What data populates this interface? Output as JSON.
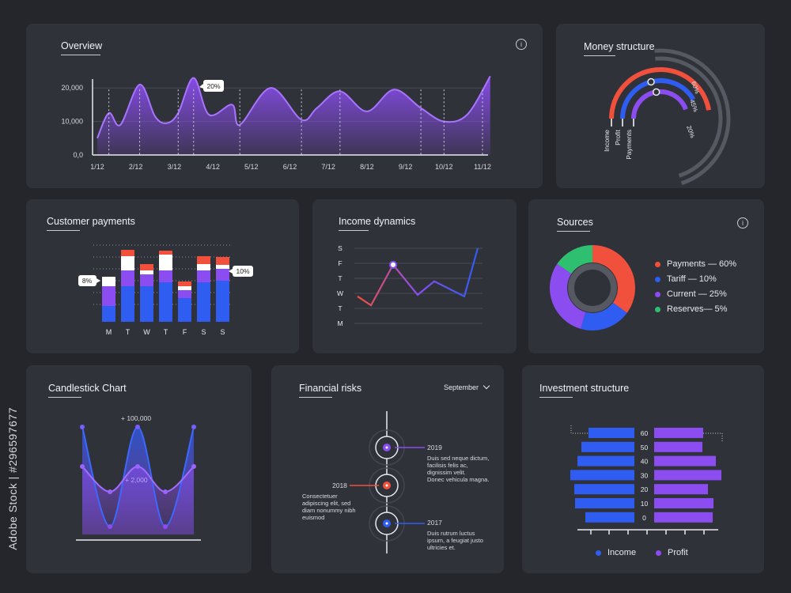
{
  "watermark": {
    "side_text": "Adobe Stock | #296597677"
  },
  "colors": {
    "purple": "#8b4df0",
    "blue": "#2f5df2",
    "red": "#f0503c",
    "white": "#ffffff",
    "green": "#2fbf70",
    "grey": "#565862"
  },
  "icons": {
    "info": "i",
    "chevron": "chevron-down"
  },
  "overview": {
    "title": "Overview",
    "callout": "20%"
  },
  "money": {
    "title": "Money structure"
  },
  "customer": {
    "title": "Customer payments",
    "callout_left": "8%",
    "callout_right": "10%"
  },
  "income": {
    "title": "Income dynamics"
  },
  "sources": {
    "title": "Sources"
  },
  "candle": {
    "title": "Candlestick Chart",
    "label_top": "+ 100,000",
    "label_mid": "+ 2,000"
  },
  "risks": {
    "title": "Financial risks",
    "month": "September",
    "events": [
      {
        "year": "2019",
        "text": [
          "Duis sed neque dictum,",
          "facilisis felis ac,",
          "dignissim velit.",
          "Donec vehicula magna."
        ]
      },
      {
        "year": "2018",
        "text": [
          "Consectetuer",
          "adipiscing elit, sed",
          "diam nonummy nibh",
          "euismod"
        ]
      },
      {
        "year": "2017",
        "text": [
          "Duis rutrum luctus",
          "ipsum, a feugiat justo",
          "ultricies et."
        ]
      }
    ]
  },
  "investment": {
    "title": "Investment structure"
  },
  "chart_data": [
    {
      "type": "area",
      "title": "Overview",
      "x": [
        "1/12",
        "2/12",
        "3/12",
        "4/12",
        "5/12",
        "6/12",
        "7/12",
        "8/12",
        "9/12",
        "10/12",
        "11/12"
      ],
      "yticks": [
        "20,000",
        "10,000",
        "0,0"
      ],
      "ylim": [
        0,
        25000
      ],
      "points": [
        [
          0,
          5000
        ],
        [
          0.3,
          12500
        ],
        [
          0.6,
          9000
        ],
        [
          1.1,
          21000
        ],
        [
          1.5,
          11500
        ],
        [
          1.8,
          9500
        ],
        [
          2.1,
          12500
        ],
        [
          2.5,
          23000
        ],
        [
          2.9,
          12000
        ],
        [
          3.5,
          15000
        ],
        [
          3.7,
          9000
        ],
        [
          4.5,
          20000
        ],
        [
          5.3,
          10500
        ],
        [
          5.7,
          14000
        ],
        [
          6.3,
          19000
        ],
        [
          7.0,
          13000
        ],
        [
          7.7,
          19500
        ],
        [
          8.4,
          14000
        ],
        [
          9.0,
          10000
        ],
        [
          9.6,
          12000
        ],
        [
          10.2,
          23500
        ]
      ],
      "grid": true
    },
    {
      "type": "pie",
      "title": "Money structure",
      "series": [
        {
          "name": "Income",
          "value": 60,
          "label": "60%"
        },
        {
          "name": "Profit",
          "value": 45,
          "label": "45%"
        },
        {
          "name": "Payments",
          "value": 20,
          "label": "20%"
        }
      ]
    },
    {
      "type": "bar",
      "title": "Customer payments",
      "categories": [
        "M",
        "T",
        "W",
        "T",
        "F",
        "S",
        "S"
      ],
      "stacked": true,
      "series": [
        {
          "values": [
            20,
            45,
            45,
            50,
            30,
            50,
            52
          ]
        },
        {
          "values": [
            25,
            20,
            15,
            15,
            10,
            15,
            15
          ]
        },
        {
          "values": [
            12,
            18,
            5,
            20,
            5,
            8,
            5
          ]
        },
        {
          "values": [
            0,
            8,
            8,
            5,
            6,
            10,
            10
          ]
        }
      ],
      "ylim": [
        0,
        100
      ]
    },
    {
      "type": "line",
      "title": "Income dynamics",
      "yticks": [
        "S",
        "F",
        "T",
        "W",
        "T",
        "M"
      ],
      "values": [
        1.8,
        1.2,
        3.9,
        1.9,
        2.8,
        1.8,
        5.0
      ],
      "ylim": [
        0,
        5
      ]
    },
    {
      "type": "pie",
      "title": "Sources",
      "series": [
        {
          "name": "Payments",
          "value": 60,
          "label": "Payments — 60%"
        },
        {
          "name": "Tariff",
          "value": 10,
          "label": "Tariff — 10%"
        },
        {
          "name": "Current",
          "value": 25,
          "label": "Current  — 25%"
        },
        {
          "name": "Reserves",
          "value": 5,
          "label": "Reserves— 5%"
        }
      ]
    },
    {
      "type": "line",
      "title": "Candlestick Chart",
      "annotations": [
        "+ 100,000",
        "+ 2,000"
      ]
    },
    {
      "type": "bar",
      "title": "Investment structure",
      "categories": [
        "60",
        "50",
        "40",
        "30",
        "20",
        "10",
        "0"
      ],
      "series": [
        {
          "name": "Income",
          "values": [
            58,
            67,
            72,
            81,
            76,
            75,
            62
          ]
        },
        {
          "name": "Profit",
          "values": [
            62,
            61,
            78,
            85,
            68,
            75,
            74
          ]
        }
      ]
    }
  ]
}
